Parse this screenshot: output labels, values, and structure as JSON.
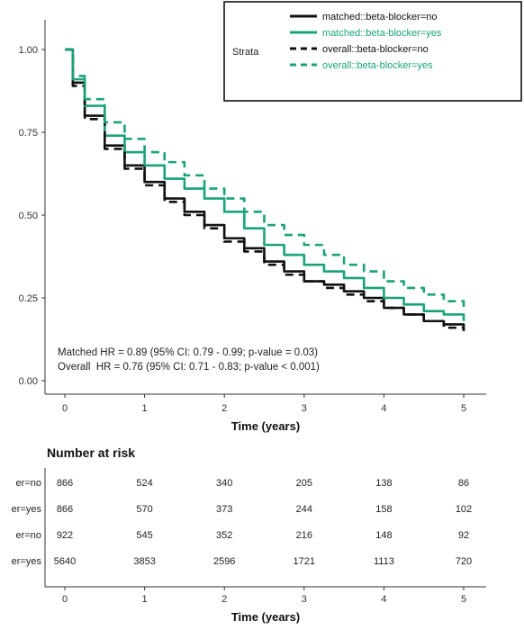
{
  "chart_data": [
    {
      "type": "line",
      "title": "",
      "xlabel": "Time (years)",
      "ylabel": "",
      "xlim": [
        0,
        5
      ],
      "ylim": [
        0,
        1
      ],
      "x_ticks": [
        "0",
        "1",
        "2",
        "3",
        "4",
        "5"
      ],
      "y_ticks": [
        "0.00",
        "0.25",
        "0.50",
        "0.75",
        "1.00"
      ],
      "grid": false,
      "legend": {
        "title": "Strata",
        "position": "top-right",
        "entries": [
          {
            "label": "matched::beta-blocker=no",
            "color": "#111111",
            "dash": "solid"
          },
          {
            "label": "matched::beta-blocker=yes",
            "color": "#1aa37a",
            "dash": "solid"
          },
          {
            "label": "overall::beta-blocker=no",
            "color": "#111111",
            "dash": "dashed"
          },
          {
            "label": "overall::beta-blocker=yes",
            "color": "#1aa37a",
            "dash": "dashed"
          }
        ]
      },
      "series": [
        {
          "name": "matched::beta-blocker=no",
          "color": "#111111",
          "dash": "solid",
          "x": [
            0,
            0.1,
            0.25,
            0.5,
            0.75,
            1,
            1.25,
            1.5,
            1.75,
            2,
            2.25,
            2.5,
            2.75,
            3,
            3.25,
            3.5,
            3.75,
            4,
            4.25,
            4.5,
            4.75,
            5
          ],
          "y": [
            1.0,
            0.9,
            0.8,
            0.71,
            0.65,
            0.6,
            0.55,
            0.51,
            0.47,
            0.43,
            0.4,
            0.36,
            0.33,
            0.3,
            0.29,
            0.27,
            0.25,
            0.22,
            0.2,
            0.18,
            0.17,
            0.15
          ]
        },
        {
          "name": "matched::beta-blocker=yes",
          "color": "#1aa37a",
          "dash": "solid",
          "x": [
            0,
            0.1,
            0.25,
            0.5,
            0.75,
            1,
            1.25,
            1.5,
            1.75,
            2,
            2.25,
            2.5,
            2.75,
            3,
            3.25,
            3.5,
            3.75,
            4,
            4.25,
            4.5,
            4.75,
            5
          ],
          "y": [
            1.0,
            0.91,
            0.83,
            0.74,
            0.69,
            0.65,
            0.61,
            0.58,
            0.55,
            0.51,
            0.46,
            0.41,
            0.38,
            0.35,
            0.33,
            0.31,
            0.28,
            0.25,
            0.23,
            0.21,
            0.2,
            0.18
          ]
        },
        {
          "name": "overall::beta-blocker=no",
          "color": "#111111",
          "dash": "dashed",
          "x": [
            0,
            0.1,
            0.25,
            0.5,
            0.75,
            1,
            1.25,
            1.5,
            1.75,
            2,
            2.25,
            2.5,
            2.75,
            3,
            3.25,
            3.5,
            3.75,
            4,
            4.25,
            4.5,
            4.75,
            5
          ],
          "y": [
            1.0,
            0.89,
            0.79,
            0.7,
            0.64,
            0.59,
            0.54,
            0.5,
            0.46,
            0.42,
            0.39,
            0.35,
            0.32,
            0.3,
            0.28,
            0.26,
            0.24,
            0.22,
            0.2,
            0.18,
            0.16,
            0.15
          ]
        },
        {
          "name": "overall::beta-blocker=yes",
          "color": "#1aa37a",
          "dash": "dashed",
          "x": [
            0,
            0.1,
            0.25,
            0.5,
            0.75,
            1,
            1.25,
            1.5,
            1.75,
            2,
            2.25,
            2.5,
            2.75,
            3,
            3.25,
            3.5,
            3.75,
            4,
            4.25,
            4.5,
            4.75,
            5
          ],
          "y": [
            1.0,
            0.92,
            0.85,
            0.78,
            0.73,
            0.69,
            0.66,
            0.62,
            0.58,
            0.55,
            0.51,
            0.47,
            0.44,
            0.41,
            0.38,
            0.35,
            0.33,
            0.3,
            0.28,
            0.26,
            0.24,
            0.22
          ]
        }
      ],
      "annotations": [
        "Matched HR = 0.89 (95% CI: 0.79 - 0.99; p-value = 0.03)",
        "Overall  HR = 0.76 (95% CI: 0.71 - 0.83; p-value < 0.001)"
      ]
    },
    {
      "type": "table",
      "title": "Number at risk",
      "xlabel": "Time (years)",
      "x_ticks": [
        "0",
        "1",
        "2",
        "3",
        "4",
        "5"
      ],
      "xlim": [
        0,
        5
      ],
      "row_labels": [
        "er=no",
        "er=yes",
        "er=no",
        "er=yes"
      ],
      "row_colors": [
        "#111111",
        "#1aa37a",
        "#111111",
        "#1aa37a"
      ],
      "rows": [
        [
          "866",
          "524",
          "340",
          "205",
          "138",
          "86"
        ],
        [
          "866",
          "570",
          "373",
          "244",
          "158",
          "102"
        ],
        [
          "922",
          "545",
          "352",
          "216",
          "148",
          "92"
        ],
        [
          "5640",
          "3853",
          "2596",
          "1721",
          "1113",
          "720"
        ]
      ]
    }
  ]
}
